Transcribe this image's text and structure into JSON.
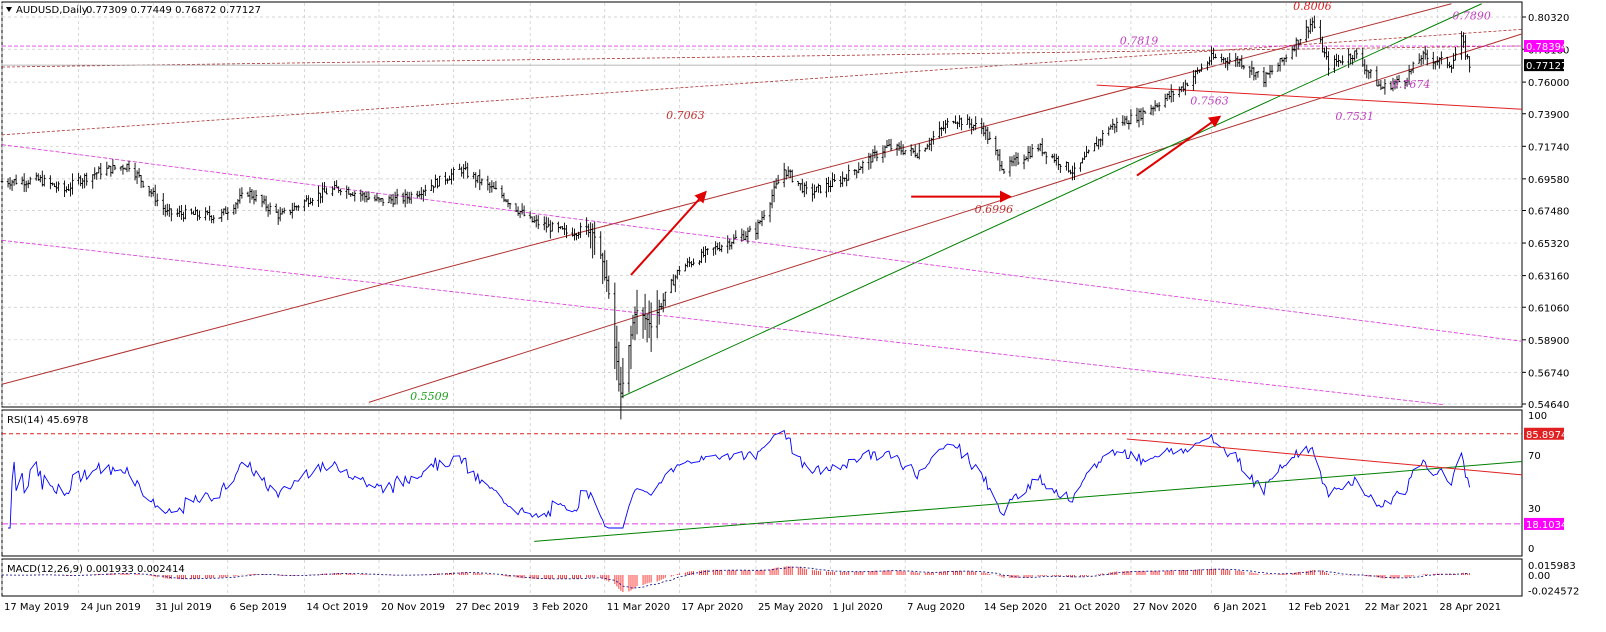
{
  "chart_data": {
    "type": "candlestick",
    "symbol_header": "AUDUSD,Daily",
    "ohlc_header": "0.77309 0.77449 0.76872 0.77127",
    "ohlc": {
      "open": 0.77309,
      "high": 0.77449,
      "low": 0.76872,
      "close": 0.77127
    },
    "price_ticks": [
      "0.80320",
      "0.78180",
      "0.76000",
      "0.73900",
      "0.71740",
      "0.69580",
      "0.67480",
      "0.65320",
      "0.63160",
      "0.61060",
      "0.58900",
      "0.56740",
      "0.54640"
    ],
    "price_ylim": [
      0.541,
      0.81
    ],
    "markers": {
      "level_high": "0.78394",
      "current": "0.77127"
    },
    "date_ticks": [
      "17 May 2019",
      "24 Jun 2019",
      "31 Jul 2019",
      "6 Sep 2019",
      "14 Oct 2019",
      "20 Nov 2019",
      "27 Dec 2019",
      "3 Feb 2020",
      "11 Mar 2020",
      "17 Apr 2020",
      "25 May 2020",
      "1 Jul 2020",
      "7 Aug 2020",
      "14 Sep 2020",
      "21 Oct 2020",
      "27 Nov 2020",
      "6 Jan 2021",
      "12 Feb 2021",
      "22 Mar 2021",
      "28 Apr 2021"
    ],
    "annotations": [
      {
        "text": "0.8006",
        "date": "2021-02-25",
        "price": 0.808,
        "color": "#e02020"
      },
      {
        "text": "0.7890",
        "date": "2021-05-15",
        "price": 0.8015,
        "color": "#c040c0"
      },
      {
        "text": "0.7819",
        "date": "2020-12-01",
        "price": 0.785,
        "color": "#c040c0"
      },
      {
        "text": "0.7563",
        "date": "2021-01-05",
        "price": 0.745,
        "color": "#c040c0"
      },
      {
        "text": "0.7674",
        "date": "2021-04-15",
        "price": 0.756,
        "color": "#c040c0"
      },
      {
        "text": "0.7531",
        "date": "2021-03-18",
        "price": 0.735,
        "color": "#c040c0"
      },
      {
        "text": "0.7063",
        "date": "2020-04-20",
        "price": 0.7355,
        "color": "#c03030"
      },
      {
        "text": "0.6996",
        "date": "2020-09-20",
        "price": 0.673,
        "color": "#c03030"
      },
      {
        "text": "0.5509",
        "date": "2019-12-15",
        "price": 0.549,
        "color": "#20a020"
      }
    ],
    "rsi": {
      "label": "RSI(14) 45.6978",
      "value": 45.6978,
      "ticks": [
        "100",
        "70",
        "30",
        "0"
      ],
      "level_upper": "85.8974",
      "level_lower": "18.1034"
    },
    "macd": {
      "label": "MACD(12,26,9) 0.001933 0.002414",
      "value": 0.001933,
      "signal": 0.002414,
      "ticks": [
        "0.015983",
        "0.00",
        "-0.024572"
      ]
    },
    "colors": {
      "candles": "#000000",
      "channel": "#b03030",
      "support_green": "#008000",
      "pink_lines": "#e040e0",
      "arrows": "#e00000",
      "rsi_line": "#0000ff",
      "macd_hist": "#ff4040",
      "macd_signal": "#000080",
      "highlight_label": "#ff00ff"
    }
  }
}
